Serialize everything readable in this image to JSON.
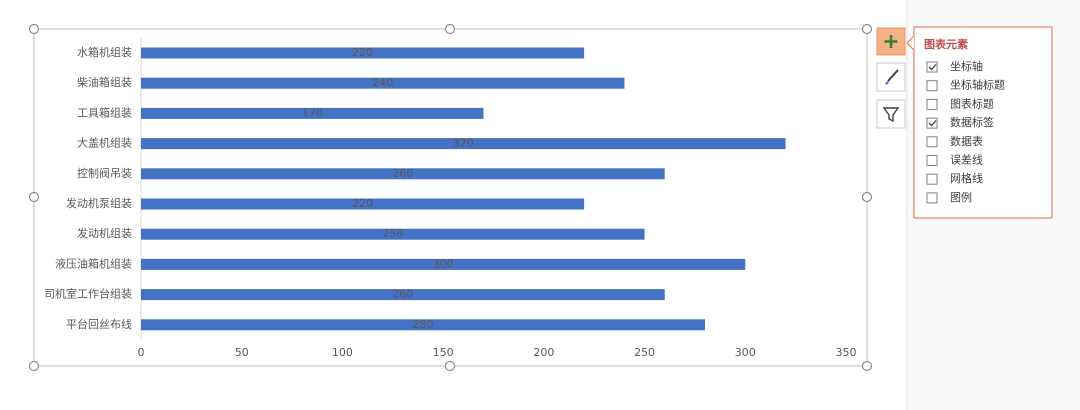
{
  "chart_data": {
    "type": "bar",
    "orientation": "horizontal",
    "categories": [
      "水箱机组装",
      "柴油箱组装",
      "工具箱组装",
      "大盖机组装",
      "控制阀吊装",
      "发动机泵组装",
      "发动机组装",
      "液压油箱机组装",
      "司机室工作台组装",
      "平台回丝布线"
    ],
    "values": [
      220,
      240,
      170,
      320,
      260,
      220,
      250,
      300,
      260,
      280
    ],
    "color": "#4472c4",
    "xlim": [
      0,
      350
    ],
    "xticks": [
      0,
      50,
      100,
      150,
      200,
      250,
      300,
      350
    ],
    "grid": false,
    "data_labels": true
  },
  "panel": {
    "title": "图表元素",
    "options": [
      {
        "label": "坐标轴",
        "checked": true
      },
      {
        "label": "坐标轴标题",
        "checked": false
      },
      {
        "label": "图表标题",
        "checked": false
      },
      {
        "label": "数据标签",
        "checked": true
      },
      {
        "label": "数据表",
        "checked": false
      },
      {
        "label": "误差线",
        "checked": false
      },
      {
        "label": "网格线",
        "checked": false
      },
      {
        "label": "图例",
        "checked": false
      }
    ]
  }
}
